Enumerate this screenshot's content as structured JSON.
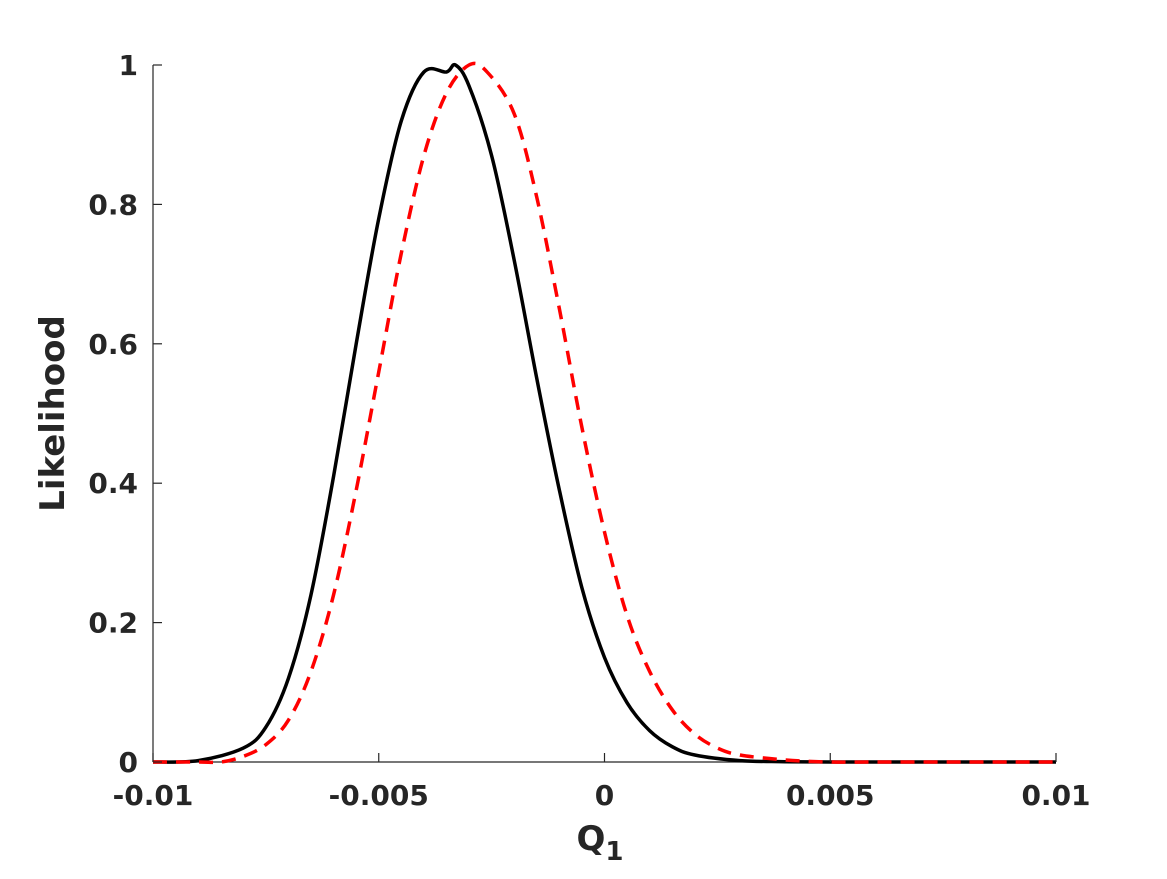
{
  "chart_data": {
    "type": "line",
    "xlabel": "Q",
    "xlabel_subscript": "1",
    "ylabel": "Likelihood",
    "xlim": [
      -0.01,
      0.01
    ],
    "ylim": [
      0,
      1
    ],
    "xticks": [
      -0.01,
      -0.005,
      0,
      0.005,
      0.01
    ],
    "xtick_labels": [
      "-0.01",
      "-0.005",
      "0",
      "0.005",
      "0.01"
    ],
    "yticks": [
      0,
      0.2,
      0.4,
      0.6,
      0.8,
      1
    ],
    "ytick_labels": [
      "0",
      "0.2",
      "0.4",
      "0.6",
      "0.8",
      "1"
    ],
    "grid": false,
    "series": [
      {
        "color": "#000000",
        "style": "solid",
        "x": [
          -0.01,
          -0.009,
          -0.008,
          -0.0075,
          -0.007,
          -0.0065,
          -0.006,
          -0.0055,
          -0.005,
          -0.0045,
          -0.004,
          -0.0035,
          -0.0033,
          -0.003,
          -0.0025,
          -0.002,
          -0.0015,
          -0.001,
          -0.0005,
          0,
          0.0005,
          0.001,
          0.0015,
          0.002,
          0.003,
          0.004,
          0.005,
          0.006,
          0.008,
          0.01
        ],
        "y": [
          0.0,
          0.002,
          0.02,
          0.05,
          0.12,
          0.24,
          0.41,
          0.6,
          0.78,
          0.92,
          0.99,
          0.99,
          1.0,
          0.97,
          0.87,
          0.72,
          0.55,
          0.39,
          0.25,
          0.15,
          0.085,
          0.045,
          0.022,
          0.01,
          0.002,
          0.0005,
          0.0,
          0.0,
          0.0,
          0.0
        ]
      },
      {
        "color": "#ff0000",
        "style": "dashed",
        "x": [
          -0.01,
          -0.009,
          -0.0085,
          -0.008,
          -0.0075,
          -0.007,
          -0.0065,
          -0.006,
          -0.0055,
          -0.005,
          -0.0045,
          -0.004,
          -0.0035,
          -0.003,
          -0.0026,
          -0.002,
          -0.0015,
          -0.001,
          -0.0005,
          0,
          0.0005,
          0.001,
          0.0015,
          0.002,
          0.0025,
          0.003,
          0.004,
          0.005,
          0.006,
          0.008,
          0.01
        ],
        "y": [
          0.0,
          0.0,
          0.0,
          0.008,
          0.025,
          0.06,
          0.13,
          0.24,
          0.39,
          0.56,
          0.73,
          0.87,
          0.96,
          1.0,
          0.99,
          0.93,
          0.81,
          0.65,
          0.48,
          0.33,
          0.21,
          0.13,
          0.075,
          0.04,
          0.02,
          0.01,
          0.003,
          0.0,
          0.0,
          0.0,
          0.0
        ]
      }
    ]
  }
}
